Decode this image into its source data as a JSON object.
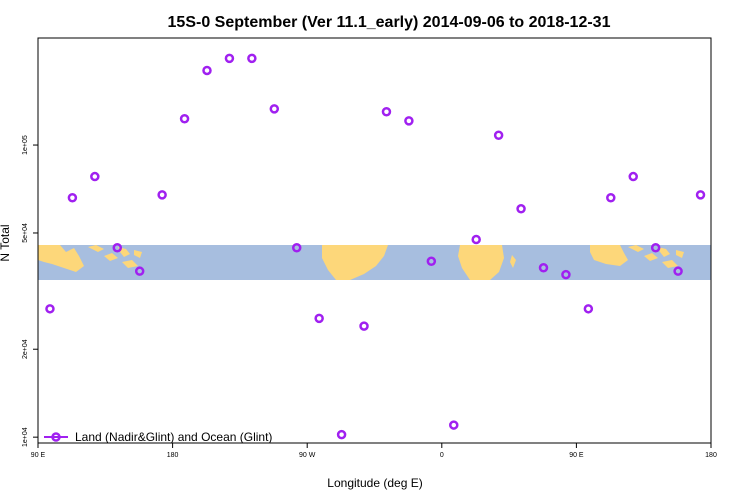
{
  "chart_data": {
    "type": "scatter",
    "title": "15S-0 September (Ver 11.1_early)   2014-09-06 to 2018-12-31",
    "xlabel": "Longitude (deg E)",
    "ylabel": "N Total",
    "y_scale": "log",
    "xlim": [
      90,
      540
    ],
    "ylim": [
      10000,
      250000
    ],
    "x_ticks": [
      {
        "value": 90,
        "label": "90 E"
      },
      {
        "value": 180,
        "label": "180"
      },
      {
        "value": 270,
        "label": "90 W"
      },
      {
        "value": 360,
        "label": "0"
      },
      {
        "value": 450,
        "label": "90 E"
      },
      {
        "value": 540,
        "label": "180"
      }
    ],
    "y_ticks": [
      {
        "value": 10000,
        "label": "1e+04"
      },
      {
        "value": 20000,
        "label": "2e+04"
      },
      {
        "value": 50000,
        "label": "5e+04"
      },
      {
        "value": 100000,
        "label": "1e+05"
      }
    ],
    "grid": false,
    "background_map": "world land/ocean strip at 15S (tan land, light-blue ocean)",
    "legend": {
      "placement": "bottom-left",
      "entries": [
        {
          "label": "Land (Nadir&Glint) and Ocean (Glint)",
          "color": "#a020f0"
        }
      ]
    },
    "series": [
      {
        "name": "Land (Nadir&Glint) and Ocean (Glint)",
        "color": "#a020f0",
        "x": [
          98,
          113,
          128,
          143,
          158,
          173,
          188,
          203,
          218,
          233,
          248,
          263,
          278,
          293,
          308,
          323,
          338,
          353,
          368,
          383,
          398,
          413,
          428,
          443,
          458,
          473,
          488,
          503,
          518,
          533
        ],
        "y": [
          27500,
          66000,
          78000,
          44500,
          37000,
          67500,
          123000,
          180000,
          198000,
          198000,
          133000,
          44500,
          25500,
          10200,
          24000,
          130000,
          121000,
          40000,
          11000,
          47500,
          108000,
          60500,
          38000,
          36000,
          27500,
          66000,
          78000,
          44500,
          37000,
          67500
        ]
      }
    ]
  },
  "map_colors": {
    "ocean": "#a7bedf",
    "land": "#fdd77a"
  },
  "marker_color": "#a020f0"
}
